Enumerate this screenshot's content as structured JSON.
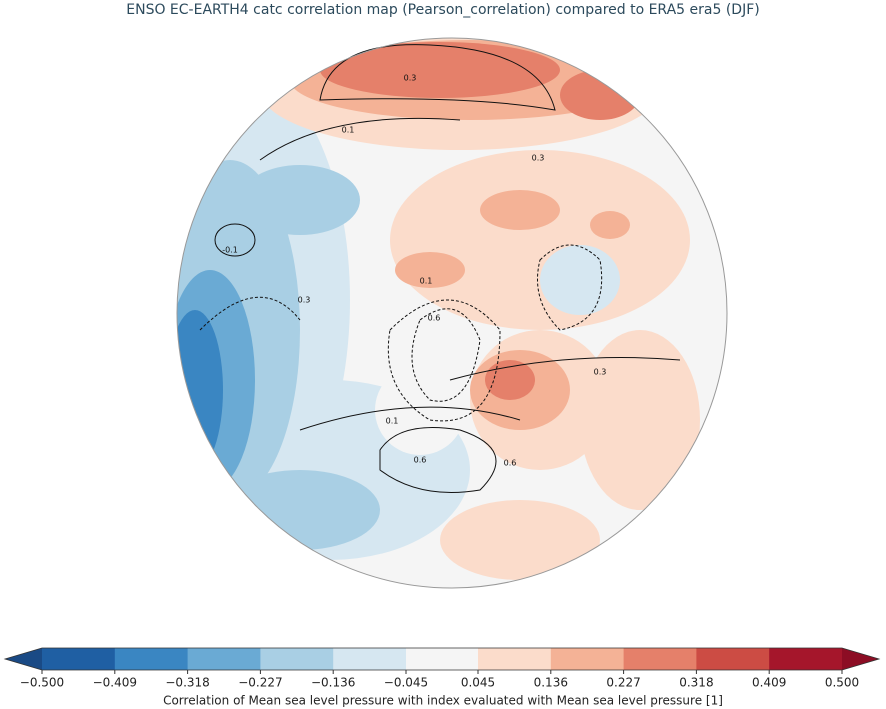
{
  "chart_data": {
    "type": "map",
    "title": "ENSO EC-EARTH4 catc correlation map (Pearson_correlation) compared to ERA5 era5 (DJF)",
    "colorbar": {
      "label": "Correlation of Mean sea level pressure with index evaluated with Mean sea level pressure [1]",
      "bounds": [
        -0.5,
        -0.409,
        -0.318,
        -0.227,
        -0.136,
        -0.045,
        0.045,
        0.136,
        0.227,
        0.318,
        0.409,
        0.5
      ],
      "colors": [
        "#1f5fa3",
        "#3a86c2",
        "#6aaad4",
        "#a9cfe4",
        "#d6e7f1",
        "#f5f5f5",
        "#fbdccb",
        "#f4b296",
        "#e5806a",
        "#cc4c44",
        "#a5162b"
      ],
      "extend_colors": [
        "#1a4a85",
        "#8c0d24"
      ],
      "ticks": [
        {
          "value": -0.5,
          "label": "−0.500"
        },
        {
          "value": -0.409,
          "label": "−0.409"
        },
        {
          "value": -0.318,
          "label": "−0.318"
        },
        {
          "value": -0.227,
          "label": "−0.227"
        },
        {
          "value": -0.136,
          "label": "−0.136"
        },
        {
          "value": -0.045,
          "label": "−0.045"
        },
        0.045,
        0.136,
        0.227,
        0.318,
        0.409,
        {
          "value": 0.5,
          "label": "0.500"
        }
      ]
    },
    "contour_labels": [
      "0.3",
      "0.1",
      "-0.1",
      "0.3",
      "0.1",
      "0.6",
      "0.1",
      "0.6",
      "0.6",
      "0.3",
      "0.3"
    ]
  }
}
